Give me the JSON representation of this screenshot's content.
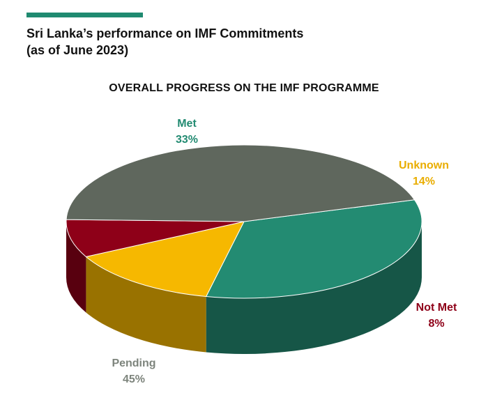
{
  "header": {
    "title_line1": "Sri Lanka’s performance on IMF Commitments",
    "title_line2": "(as of June 2023)"
  },
  "chart_data": {
    "type": "pie",
    "title": "OVERALL PROGRESS ON THE IMF PROGRAMME",
    "slices": [
      {
        "label": "Met",
        "value": 33,
        "display": "33%",
        "color": "#238b72"
      },
      {
        "label": "Unknown",
        "value": 14,
        "display": "14%",
        "color": "#f6b800"
      },
      {
        "label": "Not Met",
        "value": 8,
        "display": "8%",
        "color": "#8e0018"
      },
      {
        "label": "Pending",
        "value": 45,
        "display": "45%",
        "color": "#5f675d"
      }
    ]
  }
}
